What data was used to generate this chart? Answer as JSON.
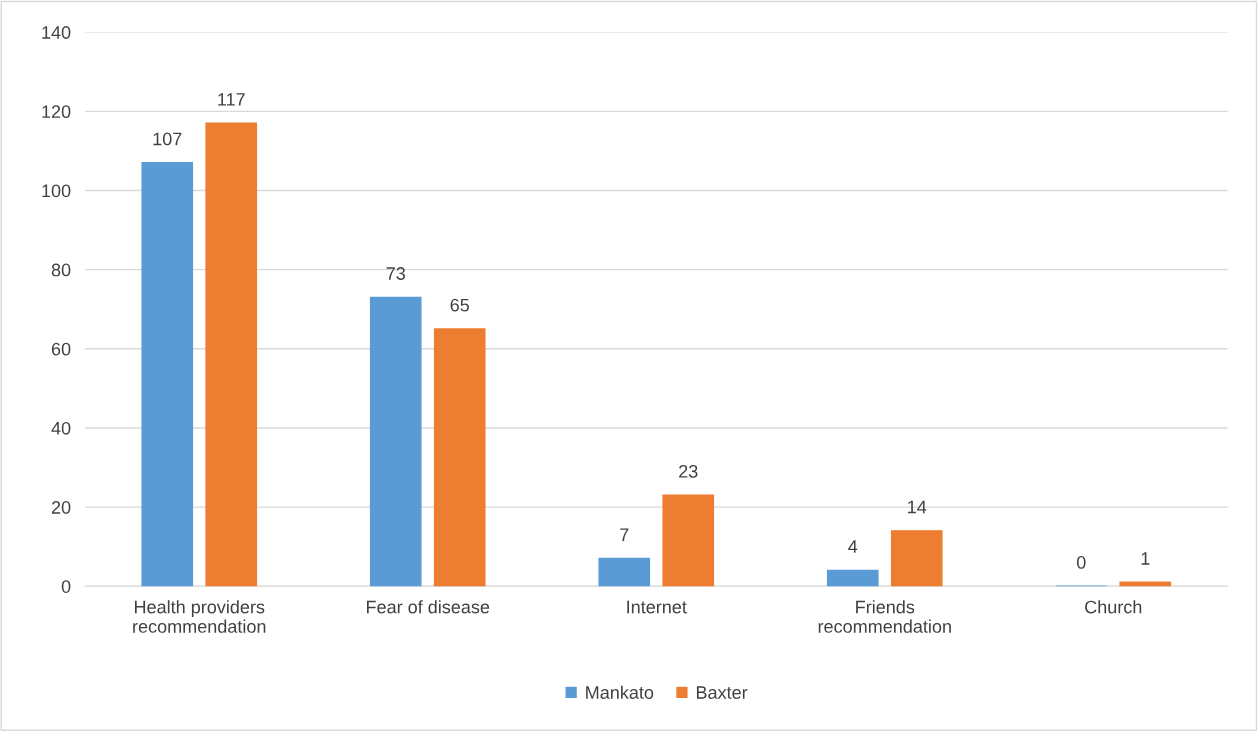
{
  "chart_data": {
    "type": "bar",
    "categories": [
      "Health providers\nrecommendation",
      "Fear of disease",
      "Internet",
      "Friends\nrecommendation",
      "Church"
    ],
    "series": [
      {
        "name": "Mankato",
        "color": "#5b9bd5",
        "values": [
          107,
          73,
          7,
          4,
          0
        ]
      },
      {
        "name": "Baxter",
        "color": "#ed7d31",
        "values": [
          117,
          65,
          23,
          14,
          1
        ]
      }
    ],
    "ylim": [
      0,
      140
    ],
    "yticks": [
      0,
      20,
      40,
      60,
      80,
      100,
      120,
      140
    ],
    "grid": "y",
    "legend": "bottom",
    "data_labels": true
  }
}
